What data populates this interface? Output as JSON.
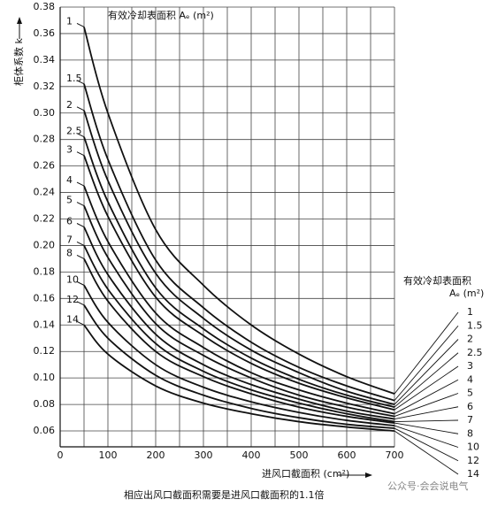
{
  "chart_data": {
    "type": "line",
    "title": "有效冷却表面积 Aₑ (m²)",
    "x_label": "进风口截面积 (cm²)",
    "y_label": "柜体系数 k",
    "legend_title": "有效冷却表面积",
    "legend_unit": "Aₑ (m²)",
    "footnote": "相应出风口截面积需要是进风口截面积的1.1倍",
    "watermark": "公众号·会会说电气",
    "x": [
      50,
      100,
      200,
      300,
      400,
      500,
      600,
      700
    ],
    "xlim": [
      0,
      700
    ],
    "xticks": [
      0,
      100,
      200,
      300,
      400,
      500,
      600,
      700
    ],
    "x_minor_ticks": [
      50,
      150,
      250,
      350,
      450,
      550,
      650
    ],
    "ylim": [
      0.048,
      0.38
    ],
    "yticks": [
      0.06,
      0.08,
      {
        "value": 0.1,
        "label": "0.10"
      },
      0.12,
      0.14,
      0.16,
      0.18,
      {
        "value": 0.2,
        "label": "0.20"
      },
      0.22,
      0.24,
      0.26,
      0.28,
      {
        "value": 0.3,
        "label": "0.30"
      },
      0.32,
      0.34,
      0.36,
      0.38
    ],
    "grid": true,
    "legend": "right",
    "series": [
      {
        "name": "1",
        "color": "#111111",
        "values": [
          0.365,
          0.3,
          0.212,
          0.17,
          0.14,
          0.118,
          0.101,
          0.088
        ]
      },
      {
        "name": "1.5",
        "color": "#111111",
        "values": [
          0.322,
          0.265,
          0.189,
          0.153,
          0.127,
          0.108,
          0.094,
          0.083
        ]
      },
      {
        "name": "2",
        "color": "#111111",
        "values": [
          0.302,
          0.249,
          0.179,
          0.145,
          0.121,
          0.104,
          0.09,
          0.08
        ]
      },
      {
        "name": "2.5",
        "color": "#111111",
        "values": [
          0.282,
          0.233,
          0.168,
          0.137,
          0.115,
          0.099,
          0.087,
          0.078
        ]
      },
      {
        "name": "3",
        "color": "#111111",
        "values": [
          0.268,
          0.222,
          0.161,
          0.132,
          0.111,
          0.096,
          0.085,
          0.076
        ]
      },
      {
        "name": "4",
        "color": "#111111",
        "values": [
          0.245,
          0.203,
          0.149,
          0.123,
          0.104,
          0.091,
          0.081,
          0.073
        ]
      },
      {
        "name": "5",
        "color": "#111111",
        "values": [
          0.23,
          0.191,
          0.141,
          0.117,
          0.1,
          0.087,
          0.078,
          0.071
        ]
      },
      {
        "name": "6",
        "color": "#111111",
        "values": [
          0.214,
          0.178,
          0.133,
          0.11,
          0.095,
          0.084,
          0.075,
          0.069
        ]
      },
      {
        "name": "7",
        "color": "#111111",
        "values": [
          0.2,
          0.167,
          0.126,
          0.105,
          0.091,
          0.081,
          0.073,
          0.067
        ]
      },
      {
        "name": "8",
        "color": "#111111",
        "values": [
          0.19,
          0.158,
          0.12,
          0.101,
          0.088,
          0.078,
          0.071,
          0.066
        ]
      },
      {
        "name": "10",
        "color": "#111111",
        "values": [
          0.17,
          0.142,
          0.11,
          0.093,
          0.082,
          0.074,
          0.068,
          0.064
        ]
      },
      {
        "name": "12",
        "color": "#111111",
        "values": [
          0.155,
          0.13,
          0.102,
          0.087,
          0.077,
          0.07,
          0.065,
          0.062
        ]
      },
      {
        "name": "14",
        "color": "#111111",
        "values": [
          0.14,
          0.118,
          0.094,
          0.081,
          0.073,
          0.067,
          0.063,
          0.06
        ]
      }
    ]
  }
}
